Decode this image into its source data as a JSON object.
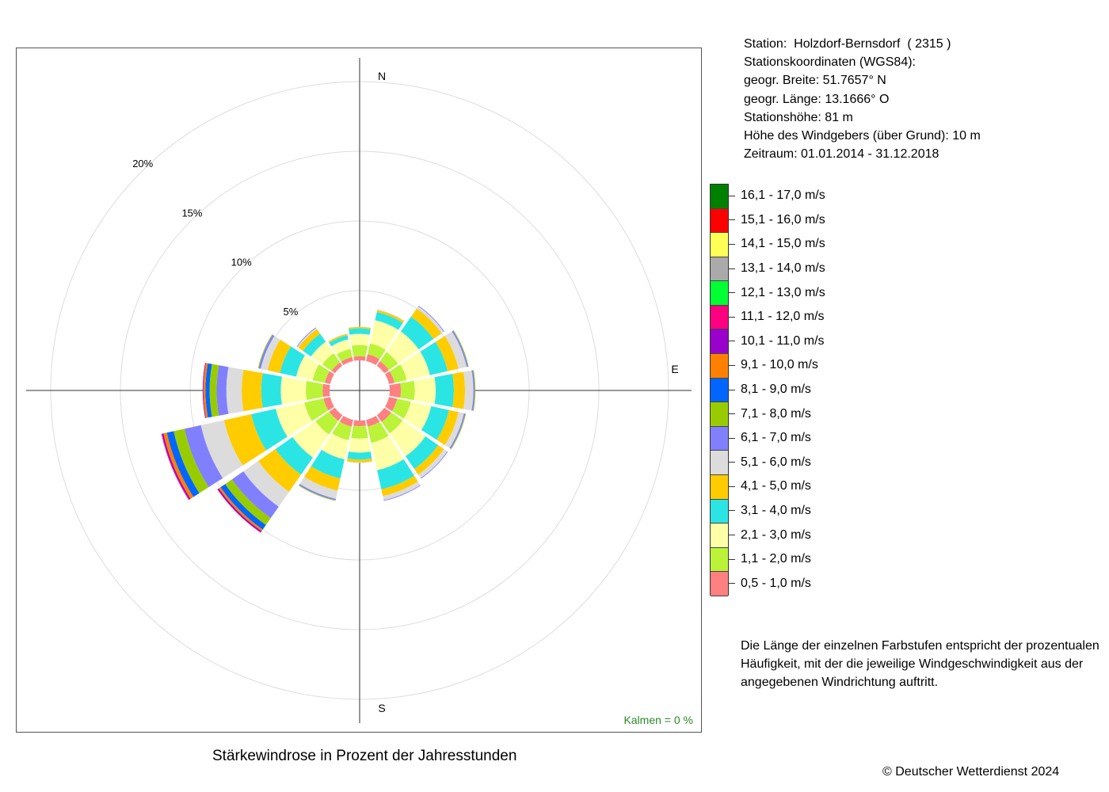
{
  "chart_data": {
    "type": "wind_rose",
    "title": "Stärkewindrose in Prozent der Jahresstunden",
    "directions": [
      "N",
      "NNO",
      "NO",
      "ONO",
      "O",
      "OSO",
      "SO",
      "SSO",
      "S",
      "SSW",
      "SW",
      "WSW",
      "W",
      "WNW",
      "NW",
      "NNW"
    ],
    "direction_labels": [
      "N",
      "E",
      "S"
    ],
    "radial_ticks": [
      "5%",
      "10%",
      "15%",
      "20%"
    ],
    "radial_values": [
      5,
      10,
      15,
      20
    ],
    "radial_max_pct": 22,
    "calm_label": "Kalmen  =  0 %",
    "speed_classes": [
      {
        "label": "0,5 - 1,0 m/s",
        "color": "#ff8080"
      },
      {
        "label": "1,1 - 2,0 m/s",
        "color": "#bbf339"
      },
      {
        "label": "2,1 - 3,0 m/s",
        "color": "#ffffa8"
      },
      {
        "label": "3,1 - 4,0 m/s",
        "color": "#2be5e5"
      },
      {
        "label": "4,1 - 5,0 m/s",
        "color": "#ffcc00"
      },
      {
        "label": "5,1 - 6,0 m/s",
        "color": "#dcdcdc"
      },
      {
        "label": "6,1 - 7,0 m/s",
        "color": "#8080ff"
      },
      {
        "label": "7,1 - 8,0 m/s",
        "color": "#99cc00"
      },
      {
        "label": "8,1 - 9,0 m/s",
        "color": "#0066ff"
      },
      {
        "label": "9,1 - 10,0 m/s",
        "color": "#ff8000"
      },
      {
        "label": "10,1 - 11,0 m/s",
        "color": "#9900cc"
      },
      {
        "label": "11,1 - 12,0 m/s",
        "color": "#ff0080"
      },
      {
        "label": "12,1 - 13,0 m/s",
        "color": "#00ff33"
      },
      {
        "label": "13,1 - 14,0 m/s",
        "color": "#aaaaaa"
      },
      {
        "label": "14,1 - 15,0 m/s",
        "color": "#ffff55"
      },
      {
        "label": "15,1 - 16,0 m/s",
        "color": "#ff0000"
      },
      {
        "label": "16,1 - 17,0 m/s",
        "color": "#008000"
      }
    ],
    "series_pct": [
      [
        0.3,
        0.8,
        0.8,
        0.4,
        0.1,
        0.02,
        0,
        0,
        0,
        0,
        0,
        0,
        0,
        0,
        0,
        0,
        0
      ],
      [
        0.5,
        0.8,
        1.7,
        0.6,
        0.15,
        0.05,
        0,
        0,
        0,
        0,
        0,
        0,
        0,
        0,
        0,
        0,
        0
      ],
      [
        0.4,
        0.8,
        1.8,
        1.3,
        0.7,
        0.2,
        0.05,
        0,
        0,
        0,
        0,
        0,
        0,
        0,
        0,
        0,
        0
      ],
      [
        0.4,
        0.9,
        1.7,
        1.3,
        0.8,
        0.6,
        0.1,
        0.05,
        0,
        0,
        0,
        0,
        0,
        0,
        0,
        0,
        0
      ],
      [
        0.8,
        1.0,
        1.5,
        1.3,
        0.8,
        0.6,
        0.1,
        0.05,
        0,
        0,
        0,
        0,
        0,
        0,
        0,
        0,
        0
      ],
      [
        0.6,
        1.0,
        1.5,
        1.3,
        0.7,
        0.4,
        0.1,
        0.05,
        0,
        0,
        0,
        0,
        0,
        0,
        0,
        0,
        0
      ],
      [
        0.6,
        1.0,
        2.0,
        1.1,
        0.5,
        0.3,
        0.05,
        0,
        0,
        0,
        0,
        0,
        0,
        0,
        0,
        0,
        0
      ],
      [
        0.5,
        1.2,
        2.0,
        1.4,
        0.5,
        0.3,
        0.05,
        0,
        0,
        0,
        0,
        0,
        0,
        0,
        0,
        0,
        0
      ],
      [
        0.4,
        0.9,
        1.0,
        0.5,
        0.2,
        0.05,
        0,
        0,
        0,
        0,
        0,
        0,
        0,
        0,
        0,
        0,
        0
      ],
      [
        0.5,
        1.0,
        1.4,
        1.4,
        0.9,
        0.6,
        0.1,
        0.05,
        0,
        0,
        0,
        0,
        0,
        0,
        0,
        0,
        0
      ],
      [
        0.5,
        1.2,
        2.0,
        1.5,
        1.5,
        1.3,
        1.0,
        0.6,
        0.4,
        0.15,
        0.1,
        0.03,
        0,
        0,
        0,
        0,
        0
      ],
      [
        0.5,
        1.4,
        2.1,
        1.8,
        2.0,
        1.7,
        1.2,
        0.8,
        0.5,
        0.25,
        0.1,
        0.05,
        0,
        0,
        0,
        0,
        0
      ],
      [
        0.5,
        1.2,
        1.8,
        1.4,
        1.4,
        1.1,
        0.7,
        0.5,
        0.3,
        0.15,
        0.05,
        0,
        0,
        0,
        0,
        0,
        0
      ],
      [
        0.4,
        0.9,
        1.2,
        1.2,
        0.9,
        0.5,
        0.15,
        0.05,
        0,
        0,
        0,
        0,
        0,
        0,
        0,
        0,
        0
      ],
      [
        0.3,
        0.8,
        1.0,
        0.7,
        0.4,
        0.1,
        0.05,
        0,
        0,
        0,
        0,
        0,
        0,
        0,
        0,
        0,
        0
      ],
      [
        0.3,
        0.6,
        0.7,
        0.3,
        0.1,
        0.03,
        0,
        0,
        0,
        0,
        0,
        0,
        0,
        0,
        0,
        0,
        0
      ]
    ]
  },
  "station": {
    "line1": "Station:  Holzdorf-Bernsdorf  ( 2315 )",
    "line2": "Stationskoordinaten (WGS84):",
    "line3": "geogr. Breite: 51.7657° N",
    "line4": "geogr. Länge: 13.1666° O",
    "line5": "Stationshöhe: 81 m",
    "line6": "Höhe des Windgebers (über Grund): 10 m",
    "line7": "Zeitraum: 01.01.2014 - 31.12.2018"
  },
  "note": "Die Länge der einzelnen Farbstufen entspricht der prozentualen Häufigkeit, mit der die jeweilige Windgeschwindigkeit aus der angegebenen Windrichtung auftritt.",
  "caption": "Stärkewindrose in Prozent der Jahresstunden",
  "copyright": "© Deutscher Wetterdienst  2024"
}
